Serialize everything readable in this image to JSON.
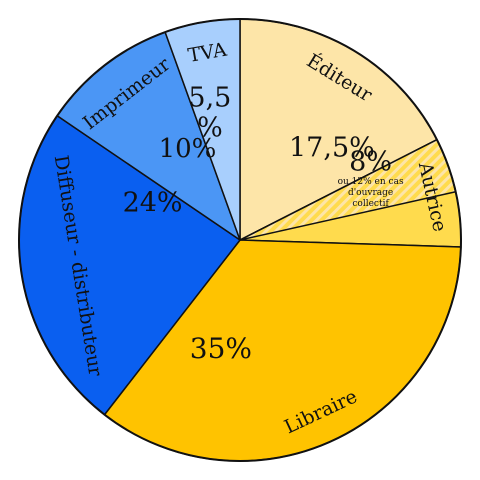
{
  "chart_data": {
    "type": "pie",
    "start_angle_deg": 0,
    "direction": "clockwise",
    "slices": [
      {
        "label": "Éditeur",
        "value": 17.5,
        "value_label": "17,5%",
        "color": "#FDE5A8"
      },
      {
        "label": "Autrice",
        "value": 8,
        "value_label": "8%",
        "note": [
          "ou 12% en cas",
          "d'ouvrage",
          "collectif"
        ],
        "color": "#FFDB4D",
        "hatch_color": "#FDE5A8",
        "hatched_part": 4
      },
      {
        "label": "Libraire",
        "value": 35,
        "value_label": "35%",
        "color": "#FFC300"
      },
      {
        "label": "Diffuseur - distributeur",
        "value": 24,
        "value_label": "24%",
        "color": "#0A5FF0"
      },
      {
        "label": "Imprimeur",
        "value": 10,
        "value_label": "10%",
        "color": "#4B96F5"
      },
      {
        "label": "TVA",
        "value_label": "5,5 %",
        "value_label_lines": [
          "5,5",
          "%"
        ],
        "value": 5.5,
        "color": "#A8CFFD"
      }
    ]
  }
}
